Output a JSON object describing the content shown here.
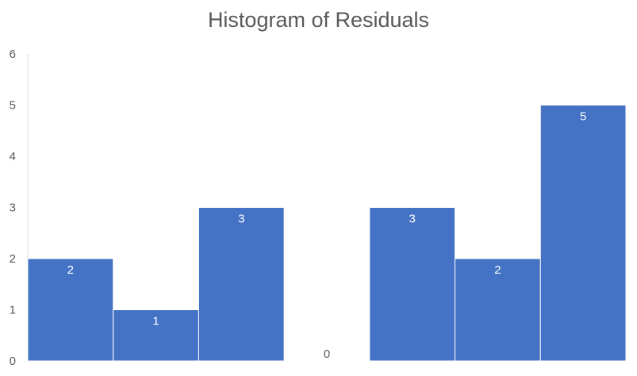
{
  "chart_data": {
    "type": "bar",
    "title": "Histogram of Residuals",
    "xlabel": "",
    "ylabel": "",
    "categories": [
      "",
      "",
      "",
      "",
      "",
      "",
      ""
    ],
    "values": [
      2,
      1,
      3,
      0,
      3,
      2,
      5
    ],
    "ylim": [
      0,
      6
    ],
    "yticks": [
      0,
      1,
      2,
      3,
      4,
      5,
      6
    ],
    "grid": false,
    "legend": "none",
    "bar_color": "#4472C4",
    "label_color_on_bar": "#ffffff",
    "label_color_zero": "#595959",
    "axis_color": "#d9d9d9",
    "text_color": "#595959"
  }
}
